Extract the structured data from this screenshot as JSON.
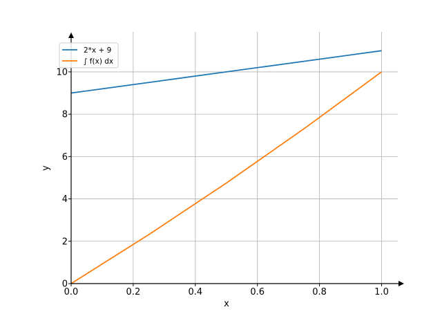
{
  "chart_data": {
    "type": "line",
    "title": "",
    "xlabel": "x",
    "ylabel": "y",
    "xlim": [
      0,
      1.05
    ],
    "ylim": [
      0,
      11.5
    ],
    "grid": true,
    "legend_position": "top-left",
    "x_ticks": [
      "0.0",
      "0.2",
      "0.4",
      "0.6",
      "0.8",
      "1.0"
    ],
    "x_tick_values": [
      0.0,
      0.2,
      0.4,
      0.6,
      0.8,
      1.0
    ],
    "y_ticks": [
      "0",
      "2",
      "4",
      "6",
      "8",
      "10"
    ],
    "y_tick_values": [
      0,
      2,
      4,
      6,
      8,
      10
    ],
    "series": [
      {
        "name": "2*x + 9",
        "color": "#1f77b4",
        "x": [
          0.0,
          0.25,
          0.5,
          0.75,
          1.0
        ],
        "y": [
          9.0,
          9.5,
          10.0,
          10.5,
          11.0
        ]
      },
      {
        "name": "∫ f(x) dx",
        "color": "#ff7f0e",
        "x": [
          0.0,
          0.25,
          0.5,
          0.75,
          1.0
        ],
        "y": [
          0.0,
          2.3125,
          4.75,
          7.3125,
          10.0
        ]
      }
    ]
  }
}
